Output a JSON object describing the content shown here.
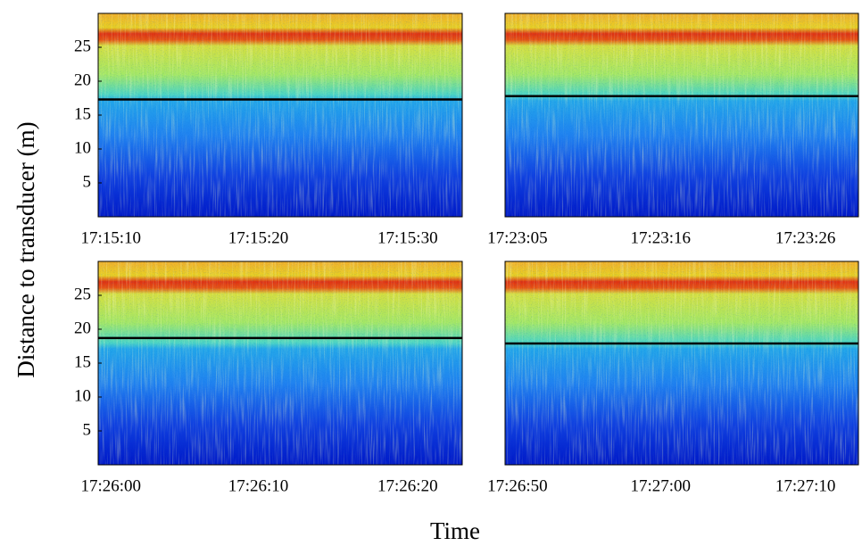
{
  "ylabel": "Distance to transducer (m)",
  "xlabel": "Time",
  "chart_data": [
    {
      "type": "echogram",
      "ylim": [
        0,
        30
      ],
      "yticks": [
        5,
        10,
        15,
        20,
        25
      ],
      "xticks": [
        "17:15:10",
        "17:15:20",
        "17:15:30"
      ],
      "hline": 17.3,
      "hline_color": "#000000"
    },
    {
      "type": "echogram",
      "ylim": [
        0,
        30
      ],
      "xticks": [
        "17:23:05",
        "17:23:16",
        "17:23:26"
      ],
      "hline": 17.8,
      "hline_color": "#000000"
    },
    {
      "type": "echogram",
      "ylim": [
        0,
        30
      ],
      "yticks": [
        5,
        10,
        15,
        20,
        25
      ],
      "xticks": [
        "17:26:00",
        "17:26:10",
        "17:26:20"
      ],
      "hline": 18.7,
      "hline_color": "#000000"
    },
    {
      "type": "echogram",
      "ylim": [
        0,
        30
      ],
      "xticks": [
        "17:26:50",
        "17:27:00",
        "17:27:10"
      ],
      "hline": 17.9,
      "hline_color": "#000000"
    }
  ]
}
